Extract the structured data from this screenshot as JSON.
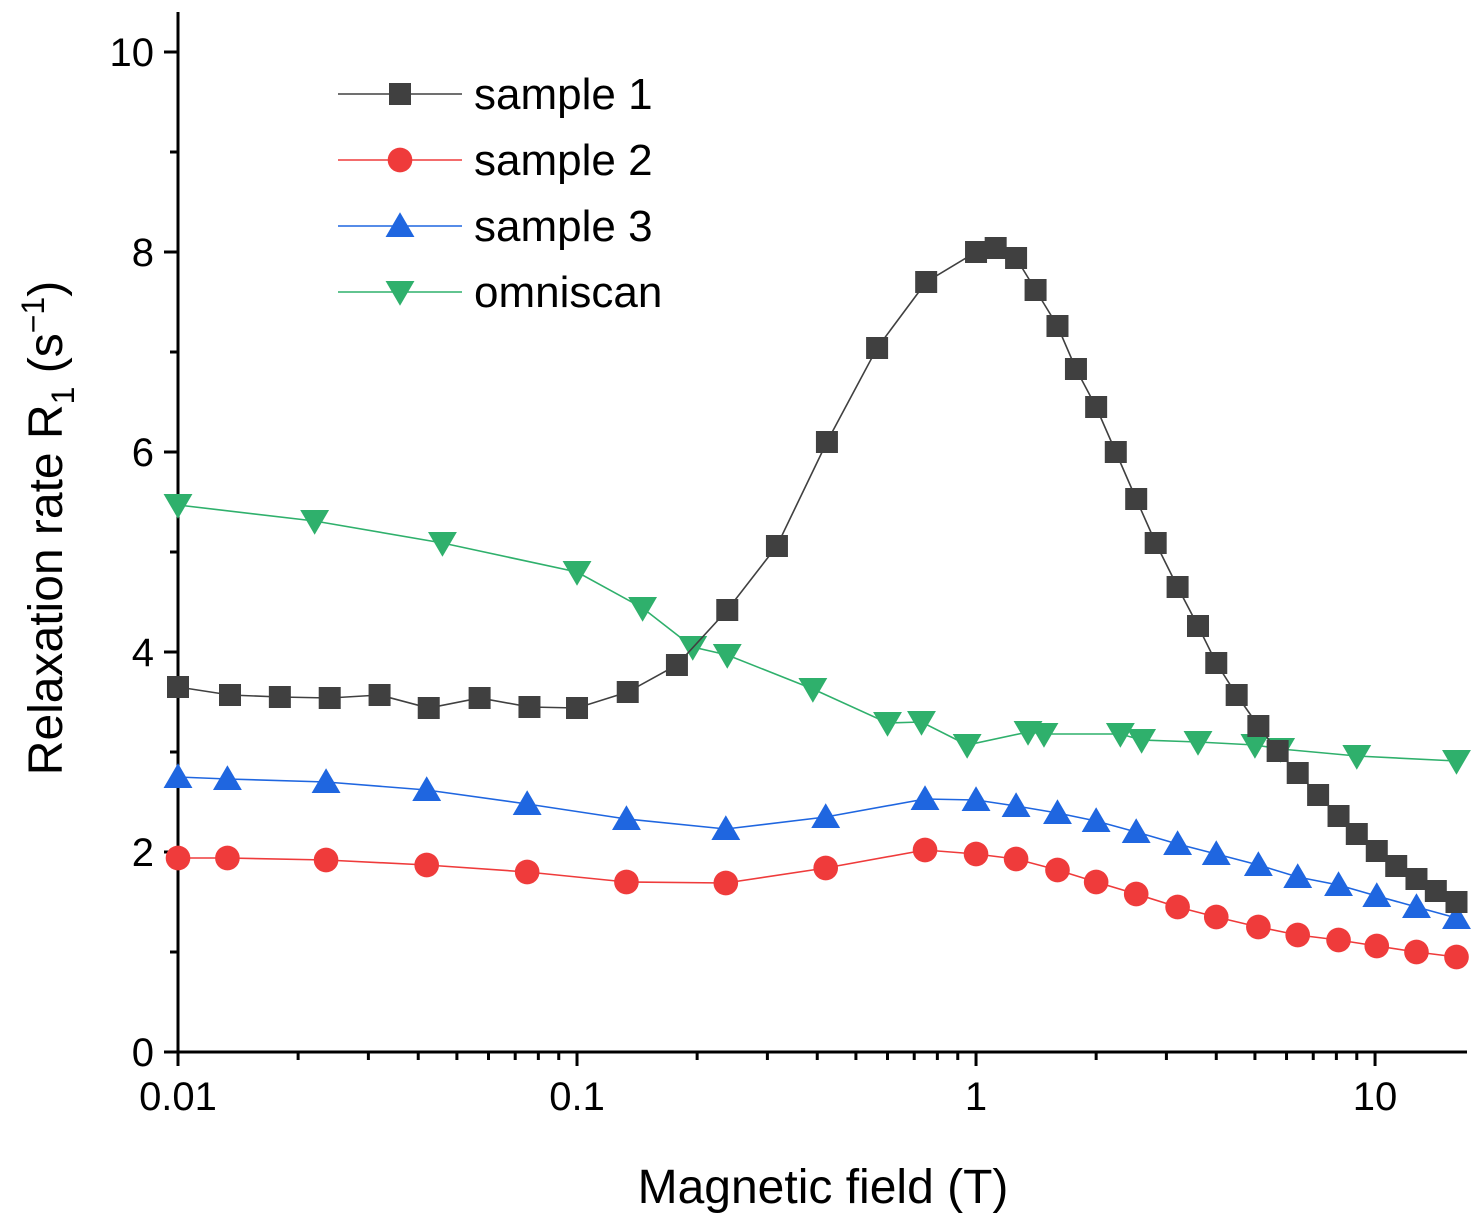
{
  "chart_data": {
    "type": "line",
    "title": "",
    "xlabel": "Magnetic field (T)",
    "ylabel_main": "Relaxation rate R",
    "ylabel_sub": "1",
    "ylabel_unit_open": " (s",
    "ylabel_unit_sup": "−1",
    "ylabel_unit_close": ")",
    "xscale": "log",
    "xlim": [
      0.01,
      17
    ],
    "ylim": [
      0,
      10.4
    ],
    "grid": false,
    "legend_position": "top-left",
    "x_ticks": [
      {
        "value": 0.01,
        "label": "0.01"
      },
      {
        "value": 0.1,
        "label": "0.1"
      },
      {
        "value": 1,
        "label": "1"
      },
      {
        "value": 10,
        "label": "10"
      }
    ],
    "y_ticks": [
      {
        "value": 0,
        "label": "0"
      },
      {
        "value": 2,
        "label": "2"
      },
      {
        "value": 4,
        "label": "4"
      },
      {
        "value": 6,
        "label": "6"
      },
      {
        "value": 8,
        "label": "8"
      },
      {
        "value": 10,
        "label": "10"
      }
    ],
    "series": [
      {
        "name": "sample 1",
        "color": "#404040",
        "marker": "square",
        "x": [
          0.01,
          0.0135,
          0.018,
          0.024,
          0.032,
          0.0425,
          0.057,
          0.076,
          0.1,
          0.134,
          0.178,
          0.238,
          0.317,
          0.423,
          0.565,
          0.75,
          1.0,
          1.12,
          1.26,
          1.41,
          1.6,
          1.78,
          2.0,
          2.24,
          2.52,
          2.82,
          3.2,
          3.6,
          4.0,
          4.5,
          5.1,
          5.7,
          6.4,
          7.2,
          8.1,
          9.0,
          10.1,
          11.3,
          12.7,
          14.2,
          16.0
        ],
        "y": [
          3.65,
          3.57,
          3.55,
          3.54,
          3.57,
          3.44,
          3.54,
          3.45,
          3.44,
          3.6,
          3.87,
          4.42,
          5.06,
          6.1,
          7.04,
          7.7,
          8.0,
          8.04,
          7.94,
          7.62,
          7.26,
          6.83,
          6.45,
          6.0,
          5.53,
          5.09,
          4.65,
          4.26,
          3.89,
          3.57,
          3.26,
          3.01,
          2.79,
          2.57,
          2.36,
          2.18,
          2.01,
          1.86,
          1.73,
          1.61,
          1.5
        ]
      },
      {
        "name": "sample 2",
        "color": "#ef3b3b",
        "marker": "circle",
        "x": [
          0.01,
          0.0133,
          0.0235,
          0.042,
          0.075,
          0.133,
          0.236,
          0.42,
          0.745,
          1.0,
          1.26,
          1.6,
          2.0,
          2.52,
          3.2,
          4.0,
          5.1,
          6.4,
          8.1,
          10.1,
          12.7,
          16.0
        ],
        "y": [
          1.94,
          1.94,
          1.92,
          1.87,
          1.8,
          1.7,
          1.69,
          1.84,
          2.02,
          1.98,
          1.93,
          1.82,
          1.7,
          1.58,
          1.45,
          1.35,
          1.25,
          1.17,
          1.12,
          1.06,
          1.0,
          0.95
        ]
      },
      {
        "name": "sample 3",
        "color": "#1f66e0",
        "marker": "triangle-up",
        "x": [
          0.01,
          0.0133,
          0.0235,
          0.042,
          0.075,
          0.133,
          0.236,
          0.42,
          0.745,
          1.0,
          1.26,
          1.6,
          2.0,
          2.52,
          3.2,
          4.0,
          5.1,
          6.4,
          8.1,
          10.1,
          12.7,
          16.0
        ],
        "y": [
          2.75,
          2.73,
          2.7,
          2.62,
          2.48,
          2.33,
          2.23,
          2.35,
          2.53,
          2.52,
          2.46,
          2.39,
          2.31,
          2.2,
          2.08,
          1.98,
          1.87,
          1.75,
          1.67,
          1.56,
          1.45,
          1.34
        ]
      },
      {
        "name": "omniscan",
        "color": "#2fb06c",
        "marker": "triangle-down",
        "x": [
          0.01,
          0.022,
          0.046,
          0.1,
          0.146,
          0.195,
          0.238,
          0.39,
          0.6,
          0.73,
          0.95,
          1.35,
          1.48,
          2.3,
          2.6,
          3.6,
          5.0,
          5.8,
          9.0,
          16.0
        ],
        "y": [
          5.47,
          5.31,
          5.09,
          4.8,
          4.44,
          4.05,
          3.97,
          3.63,
          3.29,
          3.3,
          3.07,
          3.2,
          3.18,
          3.18,
          3.12,
          3.1,
          3.07,
          3.03,
          2.96,
          2.91
        ]
      }
    ]
  }
}
